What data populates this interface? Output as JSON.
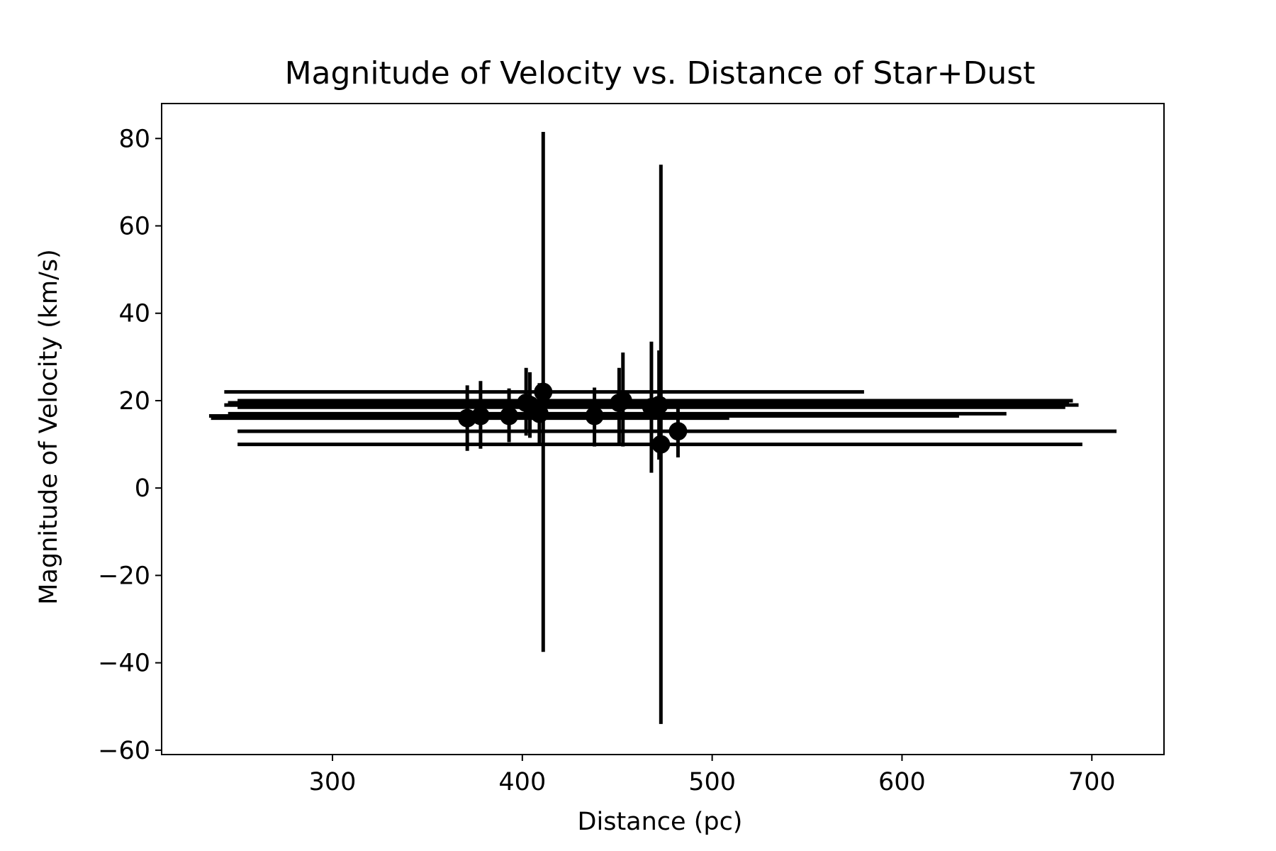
{
  "chart_data": {
    "type": "scatter",
    "title": "Magnitude of Velocity vs. Distance of Star+Dust",
    "xlabel": "Distance (pc)",
    "ylabel": "Magnitude of Velocity (km/s)",
    "xlim": [
      210,
      738
    ],
    "ylim": [
      -61,
      88
    ],
    "xticks": [
      300,
      400,
      500,
      600,
      700
    ],
    "yticks": [
      -60,
      -40,
      -20,
      0,
      20,
      40,
      60,
      80
    ],
    "xtick_labels": [
      "300",
      "400",
      "500",
      "600",
      "700"
    ],
    "ytick_labels": [
      "−60",
      "−40",
      "−20",
      "0",
      "20",
      "40",
      "60",
      "80"
    ],
    "grid": false,
    "legend": null,
    "marker_color": "#000000",
    "points": [
      {
        "x": 371,
        "y": 16.0,
        "xerr_low": 236,
        "xerr_high": 509,
        "yerr_low": 8.5,
        "yerr_high": 23.5
      },
      {
        "x": 378,
        "y": 16.5,
        "xerr_low": 240,
        "xerr_high": 578,
        "yerr_low": 9.0,
        "yerr_high": 24.5
      },
      {
        "x": 393,
        "y": 16.5,
        "xerr_low": 235,
        "xerr_high": 630,
        "yerr_low": 10.5,
        "yerr_high": 22.8
      },
      {
        "x": 402,
        "y": 19.5,
        "xerr_low": 245,
        "xerr_high": 688,
        "yerr_low": 12.0,
        "yerr_high": 27.5
      },
      {
        "x": 404,
        "y": 19.0,
        "xerr_low": 243,
        "xerr_high": 693,
        "yerr_low": 11.5,
        "yerr_high": 26.5
      },
      {
        "x": 409,
        "y": 17.0,
        "xerr_low": 245,
        "xerr_high": 655,
        "yerr_low": 10.0,
        "yerr_high": 24.0
      },
      {
        "x": 411,
        "y": 22.0,
        "xerr_low": 243,
        "xerr_high": 580,
        "yerr_low": -37.5,
        "yerr_high": 81.5
      },
      {
        "x": 438,
        "y": 16.5,
        "xerr_low": 240,
        "xerr_high": 630,
        "yerr_low": 9.5,
        "yerr_high": 23.0
      },
      {
        "x": 451,
        "y": 19.5,
        "xerr_low": 245,
        "xerr_high": 656,
        "yerr_low": 10.0,
        "yerr_high": 27.5
      },
      {
        "x": 453,
        "y": 20.0,
        "xerr_low": 250,
        "xerr_high": 690,
        "yerr_low": 9.5,
        "yerr_high": 31.0
      },
      {
        "x": 468,
        "y": 18.5,
        "xerr_low": 250,
        "xerr_high": 686,
        "yerr_low": 3.5,
        "yerr_high": 33.5
      },
      {
        "x": 472,
        "y": 19.0,
        "xerr_low": 246,
        "xerr_high": 656,
        "yerr_low": 6.5,
        "yerr_high": 31.5
      },
      {
        "x": 473,
        "y": 10.0,
        "xerr_low": 250,
        "xerr_high": 695,
        "yerr_low": -54.0,
        "yerr_high": 74.0
      },
      {
        "x": 482,
        "y": 13.0,
        "xerr_low": 250,
        "xerr_high": 713,
        "yerr_low": 7.0,
        "yerr_high": 18.5
      }
    ]
  }
}
